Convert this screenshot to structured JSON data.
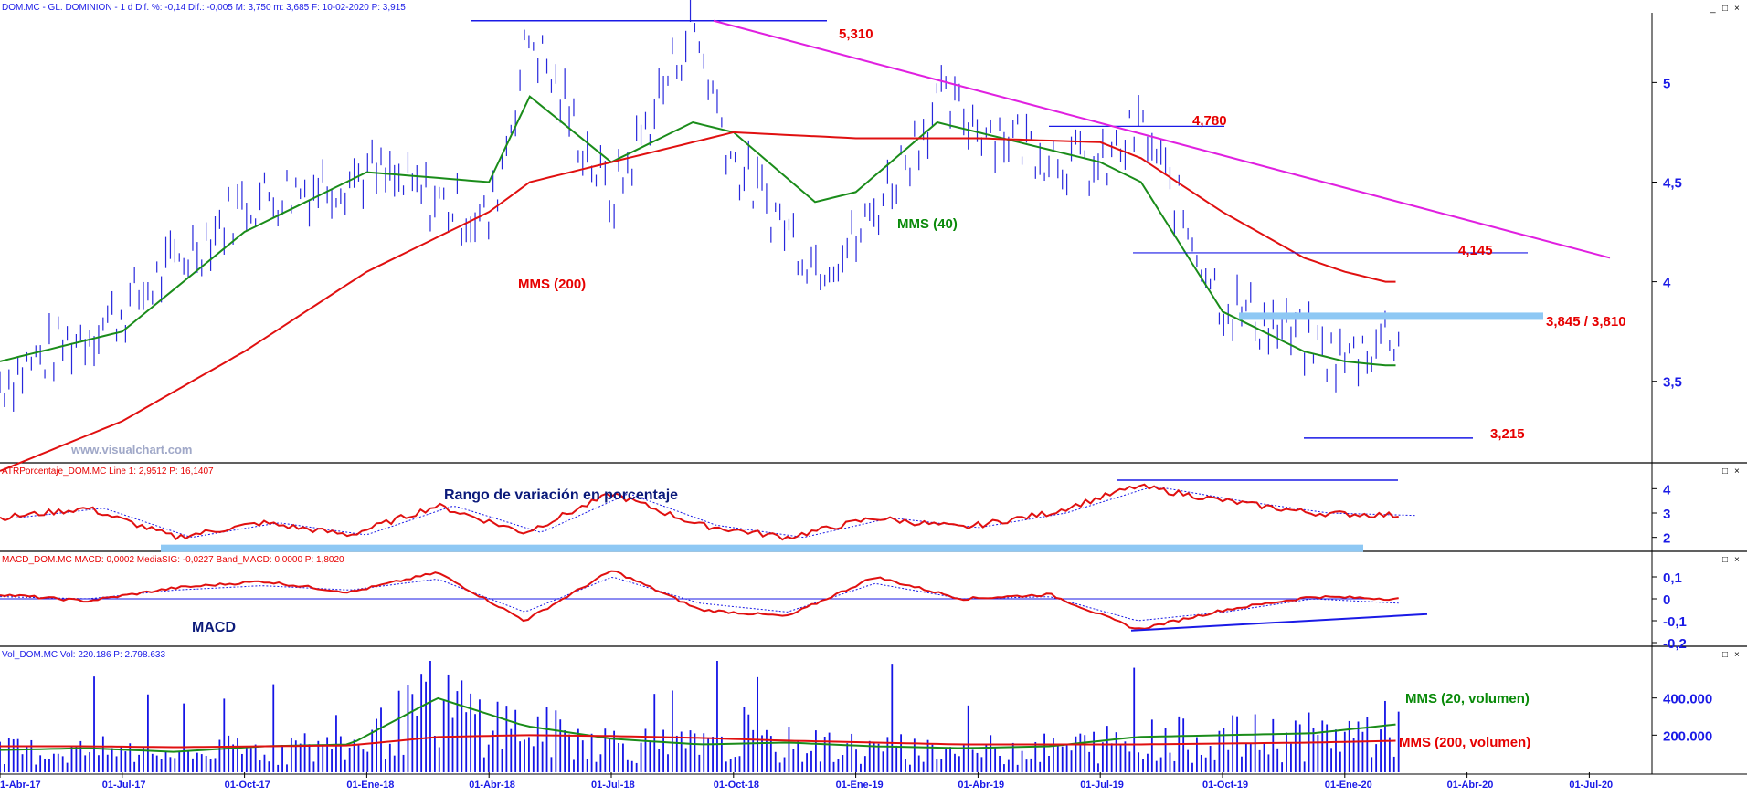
{
  "header": {
    "main": "DOM.MC - GL. DOMINION - 1 d  Dif. %: -0,14  Dif.: -0,005  M: 3,750  m: 3,685  F: 10-02-2020  P: 3,915",
    "atr": "ATRPorcentaje_DOM.MC  Line 1: 2,9512  P: 16,1407",
    "macd": "MACD_DOM.MC  MACD: 0,0002  MediaSIG: -0,0227  Band_MACD: 0,0000  P: 1,8020",
    "vol": "Vol_DOM.MC  Vol: 220.186  P: 2.798.633"
  },
  "watermark": "www.visualchart.com",
  "window_buttons": [
    "_",
    "□",
    "×"
  ],
  "annotations": {
    "resistance_high": "5,310",
    "level_4780": "4,780",
    "level_4145": "4,145",
    "zone_3845": "3,845 / 3,810",
    "support_low": "3,215",
    "mms200_label": "MMS (200)",
    "mms40_label": "MMS (40)",
    "atr_label": "Rango de variación en porcentaje",
    "macd_label": "MACD",
    "vol_mms20": "MMS (20, volumen)",
    "vol_mms200": "MMS (200, volumen)"
  },
  "chart_data": [
    {
      "type": "line",
      "panel": "price",
      "y_ticks": [
        "5",
        "4,5",
        "4",
        "3,5"
      ],
      "ylim": [
        3.1,
        5.35
      ],
      "x_ticks": [
        "1-Abr-17",
        "01-Jul-17",
        "01-Oct-17",
        "01-Ene-18",
        "01-Abr-18",
        "01-Jul-18",
        "01-Oct-18",
        "01-Ene-19",
        "01-Abr-19",
        "01-Jul-19",
        "01-Oct-19",
        "01-Ene-20",
        "01-Abr-20",
        "01-Jul-20"
      ],
      "x": [
        "2017-04",
        "2017-07",
        "2017-10",
        "2018-01",
        "2018-04",
        "2018-05",
        "2018-07",
        "2018-09",
        "2018-10",
        "2018-12",
        "2019-01",
        "2019-03",
        "2019-04",
        "2019-07",
        "2019-08",
        "2019-10",
        "2019-12",
        "2020-01",
        "2020-02"
      ],
      "series": [
        {
          "name": "DOM.MC",
          "values": [
            3.5,
            3.85,
            4.4,
            4.55,
            4.3,
            5.25,
            4.4,
            5.3,
            4.6,
            4.1,
            4.2,
            4.9,
            4.8,
            4.55,
            4.78,
            3.9,
            3.7,
            3.6,
            3.74
          ]
        },
        {
          "name": "MMS (40)",
          "values": [
            3.6,
            3.75,
            4.25,
            4.55,
            4.5,
            4.93,
            4.6,
            4.8,
            4.75,
            4.4,
            4.45,
            4.8,
            4.75,
            4.6,
            4.5,
            3.85,
            3.65,
            3.6,
            3.58
          ]
        },
        {
          "name": "MMS (200)",
          "values": [
            3.05,
            3.3,
            3.65,
            4.05,
            4.35,
            4.5,
            4.6,
            4.7,
            4.75,
            4.73,
            4.72,
            4.72,
            4.72,
            4.7,
            4.62,
            4.35,
            4.12,
            4.05,
            4.0
          ]
        }
      ],
      "levels": [
        5.31,
        4.78,
        4.145,
        3.845,
        3.81,
        3.215
      ]
    },
    {
      "type": "line",
      "panel": "atr",
      "y_ticks": [
        "4",
        "3",
        "2"
      ],
      "ylim": [
        1.5,
        4.5
      ],
      "series": [
        {
          "name": "ATRPorcentaje",
          "values": [
            2.8,
            3.2,
            2.0,
            2.6,
            2.1,
            3.3,
            2.2,
            3.8,
            2.5,
            2.0,
            2.8,
            2.4,
            3.0,
            4.1,
            3.5,
            3.0,
            2.9
          ]
        }
      ]
    },
    {
      "type": "line",
      "panel": "macd",
      "y_ticks": [
        "0,1",
        "0",
        "-0,1",
        "-0,2"
      ],
      "ylim": [
        -0.2,
        0.15
      ],
      "series": [
        {
          "name": "MACD",
          "values": [
            0.02,
            -0.01,
            0.05,
            0.08,
            0.03,
            0.12,
            -0.1,
            0.13,
            -0.05,
            -0.08,
            0.1,
            0.0,
            0.02,
            -0.14,
            -0.05,
            0.01,
            0.0
          ]
        },
        {
          "name": "MediaSIG",
          "values": [
            0.01,
            0.0,
            0.04,
            0.06,
            0.04,
            0.09,
            -0.06,
            0.1,
            -0.02,
            -0.06,
            0.07,
            0.0,
            0.01,
            -0.1,
            -0.06,
            0.0,
            -0.02
          ]
        }
      ]
    },
    {
      "type": "bar",
      "panel": "volume",
      "y_ticks": [
        "400.000",
        "200.000"
      ],
      "ylim": [
        0,
        600000
      ],
      "series": [
        {
          "name": "MMS (20, volumen)",
          "values": [
            120000,
            130000,
            110000,
            140000,
            150000,
            400000,
            250000,
            180000,
            150000,
            160000,
            140000,
            130000,
            140000,
            190000,
            200000,
            210000,
            260000
          ]
        },
        {
          "name": "MMS (200, volumen)",
          "values": [
            140000,
            140000,
            135000,
            140000,
            145000,
            190000,
            200000,
            195000,
            185000,
            170000,
            160000,
            150000,
            150000,
            150000,
            155000,
            160000,
            170000
          ]
        }
      ]
    }
  ],
  "colors": {
    "price": "#2828dc",
    "mms40": "#1a8c1a",
    "mms200": "#e01010",
    "trend": "#e020e0",
    "zone": "#8ec8f4",
    "line_blue": "#1a1ae6",
    "volume_bar": "#1414e6"
  }
}
